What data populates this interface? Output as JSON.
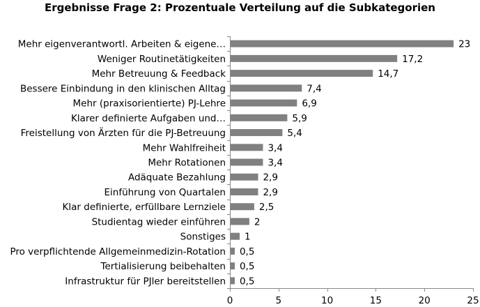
{
  "chart_data": {
    "type": "bar",
    "orientation": "horizontal",
    "title": "Ergebnisse Frage 2: Prozentuale Verteilung auf die Subkategorien",
    "xlabel": "",
    "ylabel": "",
    "xlim": [
      0,
      25
    ],
    "xticks": [
      0,
      5,
      10,
      15,
      20,
      25
    ],
    "grid": false,
    "legend": "none",
    "bar_color": "#808080",
    "categories": [
      "Mehr eigenverantwortl. Arbeiten & eigene…",
      "Weniger Routinetätigkeiten",
      "Mehr Betreuung & Feedback",
      "Bessere Einbindung in den klinischen Alltag",
      "Mehr (praxisorientierte) PJ-Lehre",
      "Klarer definierte Aufgaben und…",
      "Freistellung von Ärzten für die PJ-Betreuung",
      "Mehr Wahlfreiheit",
      "Mehr Rotationen",
      "Adäquate Bezahlung",
      "Einführung von Quartalen",
      "Klar definierte, erfüllbare  Lernziele",
      "Studientag wieder einführen",
      "Sonstiges",
      "Pro verpflichtende Allgemeinmedizin-Rotation",
      "Tertialisierung beibehalten",
      "Infrastruktur für PJler bereitstellen"
    ],
    "values": [
      23,
      17.2,
      14.7,
      7.4,
      6.9,
      5.9,
      5.4,
      3.4,
      3.4,
      2.9,
      2.9,
      2.5,
      2,
      1,
      0.5,
      0.5,
      0.5
    ],
    "value_labels": [
      "23",
      "17,2",
      "14,7",
      "7,4",
      "6,9",
      "5,9",
      "5,4",
      "3,4",
      "3,4",
      "2,9",
      "2,9",
      "2,5",
      "2",
      "1",
      "0,5",
      "0,5",
      "0,5"
    ]
  }
}
